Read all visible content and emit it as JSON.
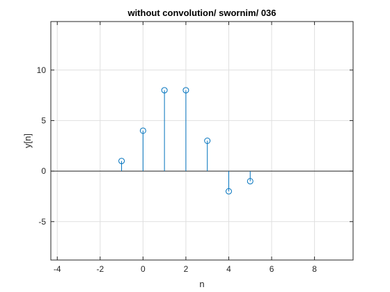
{
  "chart_data": {
    "type": "stem",
    "title": "without convolution/ swornim/ 036",
    "xlabel": "n",
    "ylabel": "y[n]",
    "xlim": [
      -4.3,
      9.8
    ],
    "ylim": [
      -8.8,
      14.8
    ],
    "xticks": [
      -4,
      -2,
      0,
      2,
      4,
      6,
      8
    ],
    "yticks": [
      -5,
      0,
      5,
      10
    ],
    "grid": true,
    "baseline": 0,
    "color": "#0072BD",
    "series": [
      {
        "x": [
          -1,
          0,
          1,
          2,
          3,
          4,
          5
        ],
        "y": [
          1,
          4,
          8,
          8,
          3,
          -2,
          -1
        ]
      }
    ]
  }
}
